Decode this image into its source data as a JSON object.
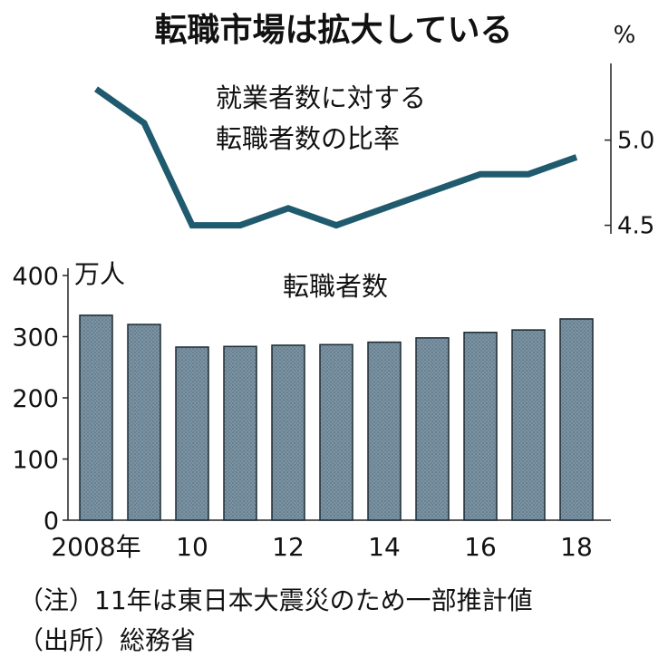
{
  "chart_data": [
    {
      "type": "line",
      "title": "転職市場は拡大している",
      "label": "就業者数に対する\n転職者数の比率",
      "unit": "%",
      "x": [
        2008,
        2009,
        2010,
        2011,
        2012,
        2013,
        2014,
        2015,
        2016,
        2017,
        2018
      ],
      "values": [
        5.3,
        5.1,
        4.5,
        4.5,
        4.6,
        4.5,
        4.6,
        4.7,
        4.8,
        4.8,
        4.9
      ],
      "ylim": [
        4.45,
        5.45
      ],
      "yticks": [
        4.5,
        5.0
      ],
      "ytick_labels": [
        "4.5",
        "5.0"
      ],
      "axis_position": "right",
      "color": "#1f5a6e"
    },
    {
      "type": "bar",
      "title": "転職者数",
      "ylabel": "万人",
      "categories": [
        2008,
        2009,
        2010,
        2011,
        2012,
        2013,
        2014,
        2015,
        2016,
        2017,
        2018
      ],
      "values": [
        335,
        320,
        283,
        284,
        286,
        287,
        291,
        298,
        307,
        311,
        329
      ],
      "ylim": [
        0,
        400
      ],
      "yticks": [
        0,
        100,
        200,
        300,
        400
      ],
      "ytick_labels": [
        "0",
        "100",
        "200",
        "300",
        "400"
      ],
      "xtick_labels": [
        "2008年",
        "",
        "10",
        "",
        "12",
        "",
        "14",
        "",
        "16",
        "",
        "18"
      ],
      "color": "#6f8796"
    }
  ],
  "notes": [
    "（注）11年は東日本大震災のため一部推計値",
    "（出所）総務省"
  ]
}
